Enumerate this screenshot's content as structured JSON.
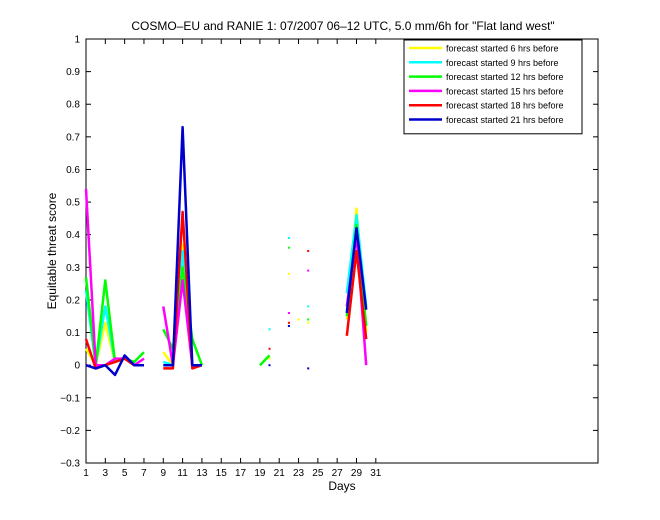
{
  "chart_data": {
    "type": "line",
    "title": "COSMO–EU and RANIE 1: 07/2007 06–12 UTC, 5.0 mm/6h for \"Flat land west\"",
    "xlabel": "Days",
    "ylabel": "Equitable threat score",
    "xlim": [
      1,
      54
    ],
    "ylim": [
      -0.3,
      1
    ],
    "xticks": [
      1,
      3,
      5,
      7,
      9,
      11,
      13,
      15,
      17,
      19,
      21,
      23,
      25,
      27,
      29,
      31
    ],
    "yticks": [
      -0.3,
      -0.2,
      -0.1,
      0,
      0.1,
      0.2,
      0.3,
      0.4,
      0.5,
      0.6,
      0.7,
      0.8,
      0.9,
      1
    ],
    "ytick_labels": [
      "−0.3",
      "−0.2",
      "−0.1",
      "0",
      "0.1",
      "0.2",
      "0.3",
      "0.4",
      "0.5",
      "0.6",
      "0.7",
      "0.8",
      "0.9",
      "1"
    ],
    "grid": false,
    "legend_position": "top-right",
    "series": [
      {
        "name": "forecast started 6 hrs before",
        "color": "#ffff00",
        "segments": [
          [
            [
              1,
              0.05
            ],
            [
              2,
              0.0
            ],
            [
              3,
              0.13
            ],
            [
              4,
              0.01
            ],
            [
              5,
              0.02
            ],
            [
              6,
              0.0
            ],
            [
              7,
              0.0
            ]
          ],
          [
            [
              9,
              0.04
            ],
            [
              10,
              0.0
            ],
            [
              11,
              0.37
            ],
            [
              12,
              0.0
            ],
            [
              13,
              0.0
            ]
          ],
          [
            [
              20,
              0.02
            ]
          ],
          [
            [
              22,
              0.28
            ]
          ],
          [
            [
              23,
              0.14
            ]
          ],
          [
            [
              24,
              0.13
            ]
          ],
          [
            [
              28,
              0.14
            ],
            [
              29,
              0.48
            ],
            [
              30,
              0.1
            ]
          ]
        ]
      },
      {
        "name": "forecast started 9 hrs before",
        "color": "#00ffff",
        "segments": [
          [
            [
              1,
              0.23
            ],
            [
              2,
              0.0
            ],
            [
              3,
              0.18
            ],
            [
              4,
              0.01
            ],
            [
              5,
              0.02
            ],
            [
              6,
              0.0
            ],
            [
              7,
              0.0
            ]
          ],
          [
            [
              9,
              0.01
            ],
            [
              10,
              0.0
            ],
            [
              11,
              0.35
            ],
            [
              12,
              0.0
            ],
            [
              13,
              0.0
            ]
          ],
          [
            [
              20,
              0.11
            ]
          ],
          [
            [
              22,
              0.39
            ]
          ],
          [
            [
              24,
              0.18
            ]
          ],
          [
            [
              28,
              0.22
            ],
            [
              29,
              0.46
            ],
            [
              30,
              0.18
            ]
          ]
        ]
      },
      {
        "name": "forecast started 12 hrs before",
        "color": "#00ff00",
        "segments": [
          [
            [
              1,
              0.27
            ],
            [
              2,
              0.0
            ],
            [
              3,
              0.26
            ],
            [
              4,
              0.01
            ],
            [
              5,
              0.02
            ],
            [
              6,
              0.01
            ],
            [
              7,
              0.04
            ]
          ],
          [
            [
              9,
              0.11
            ],
            [
              10,
              0.05
            ],
            [
              11,
              0.3
            ],
            [
              12,
              0.08
            ],
            [
              13,
              0.0
            ]
          ],
          [
            [
              19,
              0.0
            ],
            [
              20,
              0.03
            ]
          ],
          [
            [
              22,
              0.36
            ]
          ],
          [
            [
              24,
              0.14
            ]
          ],
          [
            [
              28,
              0.15
            ],
            [
              29,
              0.43
            ],
            [
              30,
              0.12
            ]
          ]
        ]
      },
      {
        "name": "forecast started 15 hrs before",
        "color": "#ff00ff",
        "segments": [
          [
            [
              1,
              0.54
            ],
            [
              2,
              0.0
            ],
            [
              3,
              0.0
            ],
            [
              4,
              0.02
            ],
            [
              5,
              0.02
            ],
            [
              6,
              0.0
            ],
            [
              7,
              0.02
            ]
          ],
          [
            [
              9,
              0.18
            ],
            [
              10,
              0.0
            ],
            [
              11,
              0.26
            ],
            [
              12,
              0.0
            ],
            [
              13,
              0.0
            ]
          ],
          [
            [
              22,
              0.16
            ]
          ],
          [
            [
              24,
              0.29
            ]
          ],
          [
            [
              28,
              0.18
            ],
            [
              29,
              0.4
            ],
            [
              30,
              0.0
            ]
          ]
        ]
      },
      {
        "name": "forecast started 18 hrs before",
        "color": "#ff0000",
        "segments": [
          [
            [
              1,
              0.08
            ],
            [
              2,
              -0.01
            ],
            [
              3,
              0.0
            ],
            [
              4,
              0.01
            ],
            [
              5,
              0.02
            ],
            [
              6,
              0.0
            ],
            [
              7,
              0.0
            ]
          ],
          [
            [
              9,
              -0.01
            ],
            [
              10,
              -0.01
            ],
            [
              11,
              0.47
            ],
            [
              12,
              -0.01
            ],
            [
              13,
              0.0
            ]
          ],
          [
            [
              20,
              0.05
            ]
          ],
          [
            [
              22,
              0.13
            ]
          ],
          [
            [
              24,
              0.35
            ]
          ],
          [
            [
              28,
              0.09
            ],
            [
              29,
              0.35
            ],
            [
              30,
              0.08
            ]
          ]
        ]
      },
      {
        "name": "forecast started 21 hrs before",
        "color": "#0000cc",
        "segments": [
          [
            [
              1,
              0.0
            ],
            [
              2,
              -0.01
            ],
            [
              3,
              0.0
            ],
            [
              4,
              -0.03
            ],
            [
              5,
              0.03
            ],
            [
              6,
              0.0
            ],
            [
              7,
              0.0
            ]
          ],
          [
            [
              9,
              0.0
            ],
            [
              10,
              0.0
            ],
            [
              11,
              0.73
            ],
            [
              12,
              0.0
            ],
            [
              13,
              0.0
            ]
          ],
          [
            [
              20,
              0.0
            ]
          ],
          [
            [
              22,
              0.12
            ]
          ],
          [
            [
              24,
              -0.01
            ]
          ],
          [
            [
              28,
              0.16
            ],
            [
              29,
              0.42
            ],
            [
              30,
              0.17
            ]
          ]
        ]
      }
    ]
  }
}
